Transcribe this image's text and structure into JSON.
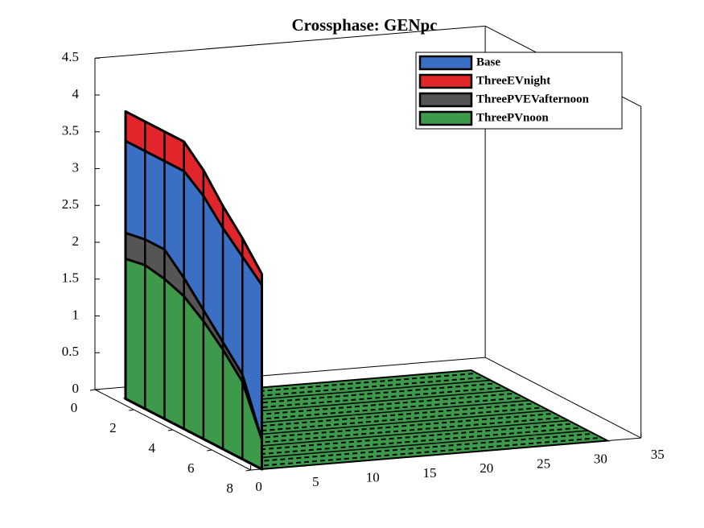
{
  "chart_data": {
    "type": "waterfall3d",
    "title": "Crossphase: GENpc",
    "depth": [
      1,
      2,
      3,
      4,
      5,
      6,
      7,
      8
    ],
    "series": [
      {
        "name": "Base",
        "color": "#3a6fc4",
        "values": [
          3.5,
          3.5,
          3.5,
          3.5,
          3.3,
          3.0,
          2.75,
          2.5
        ]
      },
      {
        "name": "ThreeEVnight",
        "color": "#e0262b",
        "values": [
          3.9,
          3.9,
          3.9,
          3.9,
          3.65,
          3.3,
          3.0,
          2.65
        ]
      },
      {
        "name": "ThreePVEVafternoon",
        "color": "#555555",
        "values": [
          2.25,
          2.3,
          2.3,
          2.05,
          1.75,
          1.45,
          1.15,
          0.4
        ]
      },
      {
        "name": "ThreePVnoon",
        "color": "#3d9a4a",
        "values": [
          1.9,
          1.95,
          1.9,
          1.8,
          1.6,
          1.35,
          1.05,
          0.4
        ]
      }
    ],
    "xlim": [
      0,
      35
    ],
    "xticks": [
      0,
      5,
      10,
      15,
      20,
      25,
      30,
      35
    ],
    "ylim": [
      0,
      8
    ],
    "yticks": [
      0,
      2,
      4,
      6,
      8
    ],
    "zlim": [
      0,
      4.5
    ],
    "zticks": [
      0,
      0.5,
      1,
      1.5,
      2,
      2.5,
      3,
      3.5,
      4,
      4.5
    ],
    "legend": "upper right"
  }
}
